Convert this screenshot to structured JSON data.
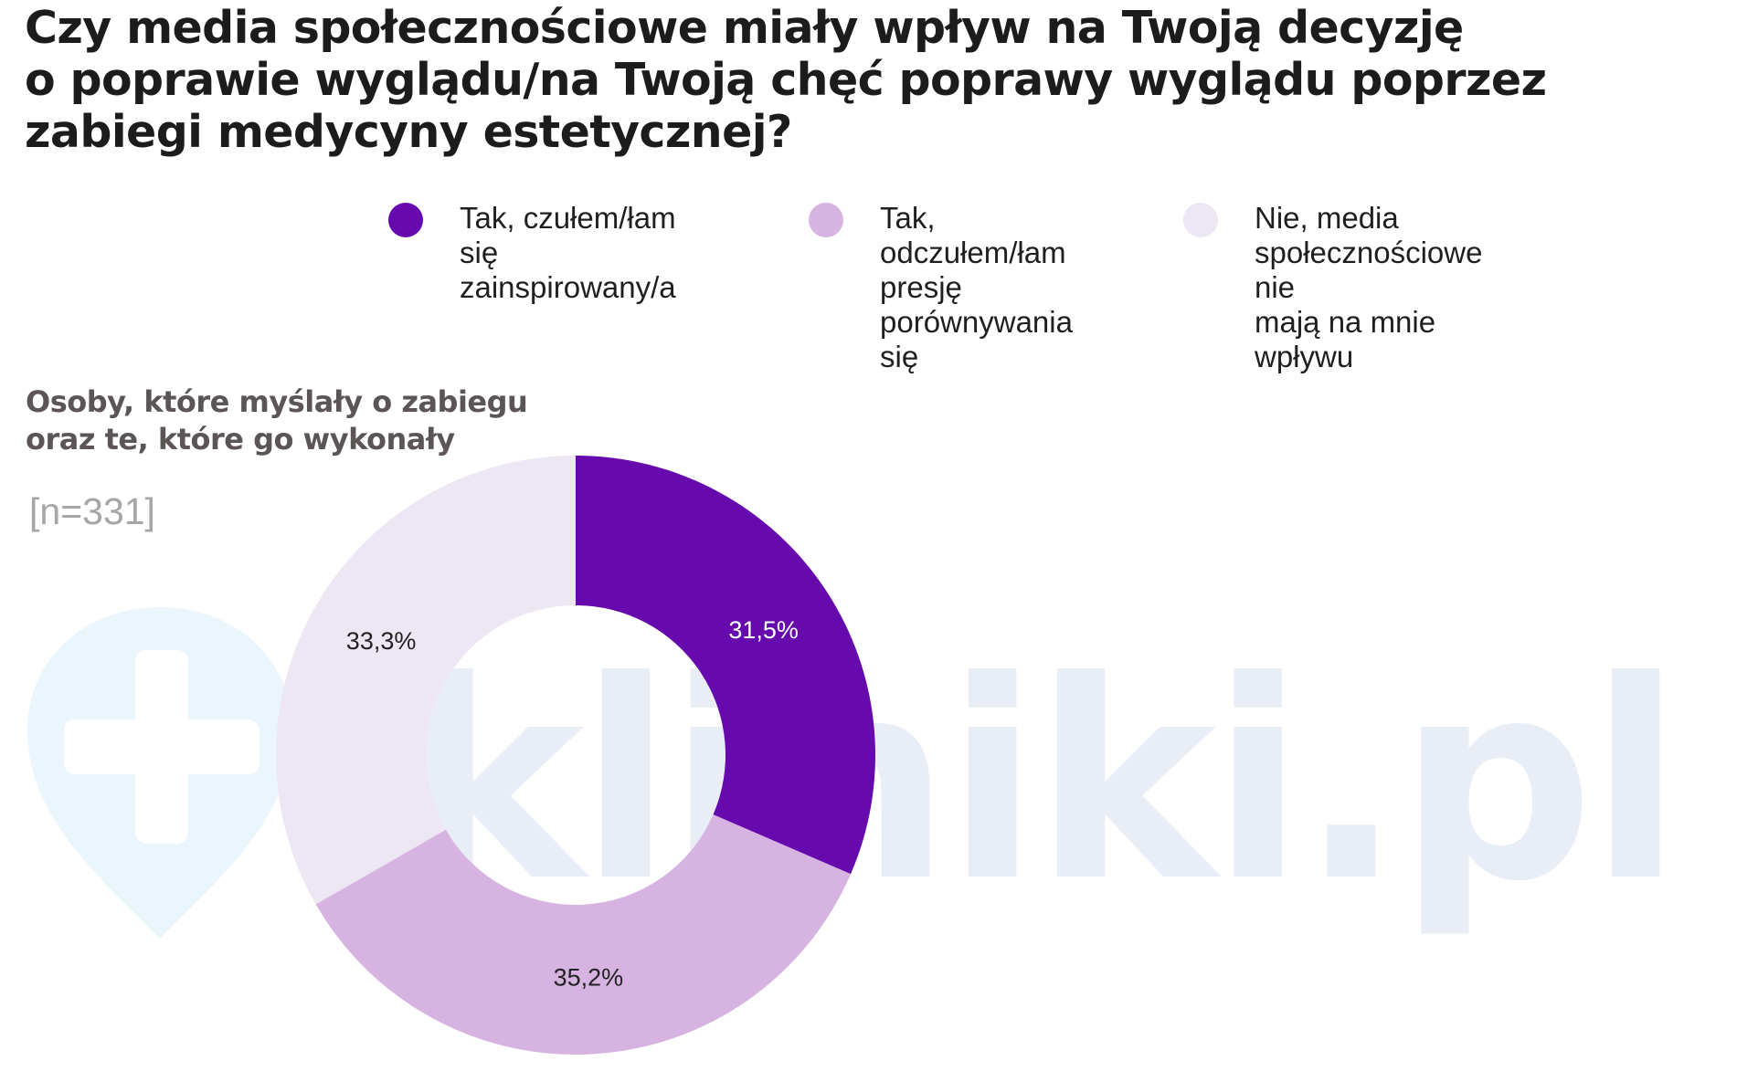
{
  "title": "Czy media społecznościowe miały wpływ na Twoją decyzję\no poprawie wyglądu/na Twoją chęć poprawy wyglądu poprzez\nzabiegi medycyny estetycznej?",
  "legend": [
    {
      "label": "Tak, czułem/łam się\nzainspirowany/a",
      "color": "#660aad"
    },
    {
      "label": "Tak, odczułem/łam\npresję\nporównywania się",
      "color": "#d7b3e2"
    },
    {
      "label": "Nie, media\nspołecznościowe nie\nmają na mnie wpływu",
      "color": "#ece7f2"
    }
  ],
  "subtitle": "Osoby, które myślały o zabiegu\noraz te, które go wykonały",
  "sample_size": "[n=331]",
  "watermark": {
    "text": "kliniki.pl",
    "icon": "medical-cross-pin-icon"
  },
  "chart_data": {
    "type": "pie",
    "variant": "donut",
    "title": "Czy media społecznościowe miały wpływ na Twoją decyzję o poprawie wyglądu/na Twoją chęć poprawy wyglądu poprzez zabiegi medycyny estetycznej?",
    "subtitle": "Osoby, które myślały o zabiegu oraz te, które go wykonały",
    "sample": "[n=331]",
    "legend_position": "top",
    "series": [
      {
        "name": "Tak, czułem/łam się zainspirowany/a",
        "value": 31.5,
        "label": "31,5%",
        "color": "#660aad",
        "label_color": "#ffffff"
      },
      {
        "name": "Tak, odczułem/łam presję porównywania się",
        "value": 35.2,
        "label": "35,2%",
        "color": "#d7b3e2",
        "label_color": "#222222"
      },
      {
        "name": "Nie, media społecznościowe nie mają na mnie wpływu",
        "value": 33.3,
        "label": "33,3%",
        "color": "#ece7f2",
        "label_color": "#222222"
      }
    ]
  }
}
